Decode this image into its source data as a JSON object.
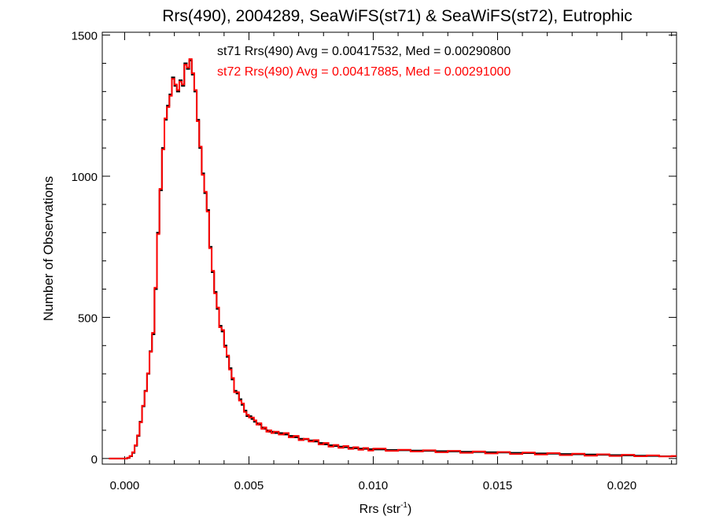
{
  "chart_data": {
    "type": "line",
    "title": "Rrs(490), 2004289, SeaWiFS(st71) & SeaWiFS(st72), Eutrophic",
    "xlabel": "Rrs (str",
    "xlabel_sup": "-1",
    "xlabel_close": ")",
    "ylabel": "Number of Observations",
    "xlim": [
      -0.0009,
      0.0222
    ],
    "ylim": [
      -20,
      1510
    ],
    "x_ticks": [
      0.0,
      0.005,
      0.01,
      0.015,
      0.02
    ],
    "x_tick_labels": [
      "0.000",
      "0.005",
      "0.010",
      "0.015",
      "0.020"
    ],
    "y_ticks": [
      0,
      500,
      1000,
      1500
    ],
    "y_tick_labels": [
      "0",
      "500",
      "1000",
      "1500"
    ],
    "grid": false,
    "annotations": [
      {
        "text": "st71 Rrs(490) Avg = 0.00417532, Med = 0.00290800",
        "color": "#000000"
      },
      {
        "text": "st72 Rrs(490) Avg = 0.00417885, Med = 0.00291000",
        "color": "#ff0000"
      }
    ],
    "series": [
      {
        "name": "st71",
        "color": "#000000",
        "x": [
          0.0,
          0.0001,
          0.0002,
          0.0003,
          0.0004,
          0.0005,
          0.0006,
          0.0007,
          0.0008,
          0.0009,
          0.001,
          0.0011,
          0.0012,
          0.0013,
          0.0014,
          0.0015,
          0.0016,
          0.0017,
          0.0018,
          0.0019,
          0.002,
          0.0021,
          0.0022,
          0.0023,
          0.0024,
          0.0025,
          0.0026,
          0.0027,
          0.0028,
          0.0029,
          0.003,
          0.0031,
          0.0032,
          0.0033,
          0.0034,
          0.0035,
          0.0036,
          0.0037,
          0.0038,
          0.0039,
          0.004,
          0.0041,
          0.0042,
          0.0043,
          0.0044,
          0.0045,
          0.0046,
          0.0047,
          0.0048,
          0.0049,
          0.005,
          0.0051,
          0.0052,
          0.0053,
          0.0054,
          0.0055,
          0.0056,
          0.0057,
          0.0058,
          0.0059,
          0.006,
          0.0062,
          0.0064,
          0.0066,
          0.0068,
          0.007,
          0.0072,
          0.0074,
          0.0076,
          0.0078,
          0.008,
          0.0082,
          0.0084,
          0.0086,
          0.0088,
          0.009,
          0.0092,
          0.0094,
          0.0096,
          0.0098,
          0.01,
          0.0105,
          0.011,
          0.0115,
          0.012,
          0.0125,
          0.013,
          0.0135,
          0.014,
          0.0145,
          0.015,
          0.0155,
          0.016,
          0.0165,
          0.017,
          0.0175,
          0.018,
          0.0185,
          0.019,
          0.0195,
          0.02,
          0.0205,
          0.021,
          0.0215,
          0.022
        ],
        "y": [
          0,
          2,
          8,
          20,
          45,
          80,
          130,
          185,
          240,
          300,
          380,
          440,
          600,
          800,
          950,
          1100,
          1200,
          1250,
          1290,
          1350,
          1320,
          1300,
          1340,
          1320,
          1400,
          1380,
          1410,
          1360,
          1300,
          1200,
          1100,
          1010,
          940,
          880,
          750,
          660,
          590,
          530,
          470,
          450,
          400,
          360,
          320,
          280,
          240,
          230,
          210,
          190,
          170,
          150,
          150,
          140,
          130,
          125,
          120,
          110,
          105,
          100,
          95,
          95,
          90,
          90,
          85,
          80,
          75,
          70,
          68,
          64,
          60,
          55,
          50,
          47,
          44,
          42,
          40,
          38,
          36,
          35,
          34,
          33,
          32,
          30,
          29,
          28,
          27,
          26,
          25,
          24,
          23,
          22,
          21,
          20,
          19,
          18,
          17,
          16,
          15,
          14,
          13,
          12,
          11,
          10,
          9,
          8,
          8
        ]
      },
      {
        "name": "st72",
        "color": "#ff0000",
        "x": [
          0.0,
          0.0001,
          0.0002,
          0.0003,
          0.0004,
          0.0005,
          0.0006,
          0.0007,
          0.0008,
          0.0009,
          0.001,
          0.0011,
          0.0012,
          0.0013,
          0.0014,
          0.0015,
          0.0016,
          0.0017,
          0.0018,
          0.0019,
          0.002,
          0.0021,
          0.0022,
          0.0023,
          0.0024,
          0.0025,
          0.0026,
          0.0027,
          0.0028,
          0.0029,
          0.003,
          0.0031,
          0.0032,
          0.0033,
          0.0034,
          0.0035,
          0.0036,
          0.0037,
          0.0038,
          0.0039,
          0.004,
          0.0041,
          0.0042,
          0.0043,
          0.0044,
          0.0045,
          0.0046,
          0.0047,
          0.0048,
          0.0049,
          0.005,
          0.0051,
          0.0052,
          0.0053,
          0.0054,
          0.0055,
          0.0056,
          0.0057,
          0.0058,
          0.0059,
          0.006,
          0.0062,
          0.0064,
          0.0066,
          0.0068,
          0.007,
          0.0072,
          0.0074,
          0.0076,
          0.0078,
          0.008,
          0.0082,
          0.0084,
          0.0086,
          0.0088,
          0.009,
          0.0092,
          0.0094,
          0.0096,
          0.0098,
          0.01,
          0.0105,
          0.011,
          0.0115,
          0.012,
          0.0125,
          0.013,
          0.0135,
          0.014,
          0.0145,
          0.015,
          0.0155,
          0.016,
          0.0165,
          0.017,
          0.0175,
          0.018,
          0.0185,
          0.019,
          0.0195,
          0.02,
          0.0205,
          0.021,
          0.0215,
          0.022
        ],
        "y": [
          0,
          3,
          9,
          22,
          47,
          82,
          128,
          187,
          238,
          302,
          378,
          445,
          605,
          795,
          955,
          1095,
          1205,
          1245,
          1285,
          1345,
          1325,
          1305,
          1335,
          1325,
          1395,
          1385,
          1415,
          1365,
          1305,
          1195,
          1105,
          1005,
          945,
          875,
          745,
          665,
          585,
          535,
          465,
          455,
          395,
          365,
          315,
          285,
          235,
          235,
          205,
          195,
          165,
          155,
          145,
          145,
          135,
          120,
          125,
          105,
          110,
          95,
          100,
          90,
          95,
          85,
          90,
          75,
          80,
          65,
          70,
          60,
          65,
          50,
          55,
          42,
          48,
          38,
          44,
          34,
          40,
          31,
          37,
          28,
          35,
          27,
          31,
          25,
          29,
          22,
          27,
          20,
          25,
          18,
          23,
          16,
          21,
          14,
          19,
          12,
          17,
          10,
          15,
          9,
          13,
          8,
          11,
          7,
          9
        ]
      }
    ]
  }
}
